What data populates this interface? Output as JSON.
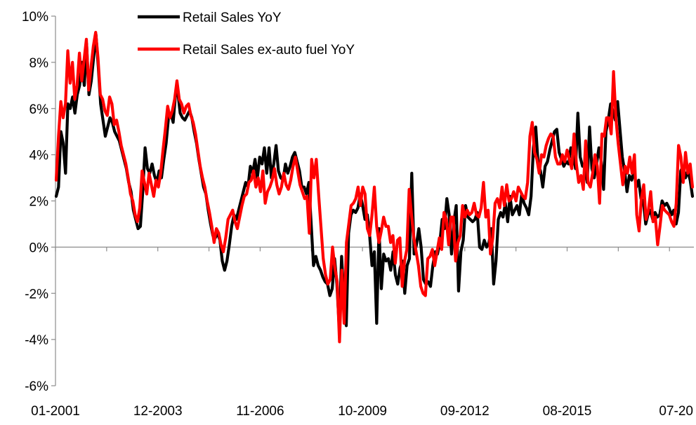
{
  "chart_data": {
    "type": "line",
    "title": "",
    "xlabel": "",
    "ylabel": "",
    "ylim": [
      -6,
      10
    ],
    "y_ticks": [
      -6,
      -4,
      -2,
      0,
      2,
      4,
      6,
      8,
      10
    ],
    "y_tick_labels": [
      "-6%",
      "-4%",
      "-2%",
      "0%",
      "2%",
      "4%",
      "6%",
      "8%",
      "10%"
    ],
    "x_tick_labels": [
      "01-2001",
      "12-2003",
      "11-2006",
      "10-2009",
      "09-2012",
      "08-2015",
      "07-20"
    ],
    "grid": false,
    "legend_position": "top-center",
    "series": [
      {
        "name": "Retail Sales YoY",
        "color": "#000000",
        "values": [
          2.2,
          2.6,
          5,
          4.5,
          3.2,
          6.2,
          6,
          6.5,
          5.8,
          6.6,
          7,
          8,
          7,
          8.8,
          6.6,
          7.2,
          8.2,
          9.2,
          7.8,
          6.2,
          5.5,
          4.8,
          5.2,
          5.6,
          5.4,
          5,
          4.8,
          4.6,
          4.2,
          3.8,
          3.4,
          2.8,
          2.4,
          1.6,
          1.2,
          0.8,
          0.9,
          2.4,
          4.3,
          3.4,
          3.2,
          3.6,
          3.1,
          2.8,
          3.3,
          3,
          3.8,
          4.5,
          5.6,
          5.8,
          5.4,
          6.6,
          6.7,
          5.8,
          5.6,
          5.5,
          5.7,
          5.9,
          5.6,
          5,
          4.5,
          3.8,
          3.2,
          2.6,
          2.3,
          1.6,
          1,
          0.5,
          0.4,
          0.6,
          0.3,
          -0.6,
          -1,
          -0.6,
          0.1,
          0.9,
          1.4,
          1.2,
          1.6,
          2,
          2.4,
          2.8,
          2.6,
          3.5,
          3.2,
          3.8,
          3,
          3.9,
          3.6,
          4.3,
          3.2,
          4.3,
          3,
          3.6,
          4.4,
          3.3,
          3,
          2.9,
          3.6,
          3.2,
          3.5,
          3.9,
          4.1,
          3.7,
          3.3,
          2.6,
          2.6,
          2.3,
          2.8,
          1,
          -0.8,
          -0.4,
          -0.8,
          -1,
          -1.3,
          -1.5,
          -1.6,
          -2.1,
          -1.8,
          -0.5,
          -1.6,
          -3.5,
          -0.4,
          -2.2,
          -3.4,
          0.6,
          1.4,
          1.6,
          1.5,
          1.7,
          2.3,
          1.8,
          1.2,
          1.4,
          0.5,
          -0.8,
          -0.2,
          -3.3,
          0.8,
          -1.8,
          -0.3,
          -0.6,
          -0.5,
          -1,
          -0.2,
          -1.2,
          -1.6,
          -0.9,
          -0.6,
          -2,
          -0.8,
          -0.5,
          3.2,
          -0.3,
          0.1,
          0.8,
          0,
          -1.4,
          -1.6,
          -1.5,
          -1.7,
          -0.8,
          -0.2,
          -0.3,
          0.2,
          1.2,
          0.8,
          2.1,
          1.4,
          -0.3,
          1.1,
          1.8,
          -1.9,
          -0.2,
          0.3,
          1.8,
          1.3,
          1.2,
          1.1,
          1.2,
          1.5,
          0,
          -0.1,
          0.3,
          0,
          0.2,
          0.8,
          -1.6,
          -0.6,
          1.2,
          1.5,
          1.3,
          1.9,
          1.1,
          2.2,
          1.4,
          1.6,
          1.8,
          1.4,
          2.3,
          1.9,
          1.7,
          1.4,
          2.2,
          4.3,
          5.2,
          3.6,
          3.3,
          2.6,
          3.5,
          3.7,
          4.2,
          4.6,
          5,
          5.1,
          4.1,
          3.8,
          3.5,
          3.7,
          3.6,
          4.3,
          4.1,
          3.4,
          5.8,
          3.9,
          3.5,
          3.6,
          2.8,
          5.2,
          3.4,
          3,
          3.6,
          4.3,
          3.7,
          2.5,
          5,
          5.5,
          6.2,
          5.9,
          5.5,
          6.3,
          5.1,
          3.9,
          3.3,
          2.4,
          3.1,
          2.9,
          3.3,
          2.6,
          2.9,
          2.1,
          2,
          1,
          1.4,
          1.6,
          1.2,
          1.5,
          1.3,
          1.4,
          2,
          1.8,
          1.9,
          1.7,
          1.4,
          1.6,
          1,
          1.5,
          3.3,
          3.5,
          3,
          3.3,
          2.9,
          2.2
        ]
      },
      {
        "name": "Retail Sales ex-auto fuel YoY",
        "color": "#ff0000",
        "values": [
          2.9,
          4.8,
          6.3,
          5.6,
          6.2,
          8.5,
          7.1,
          8,
          6.4,
          7,
          8.4,
          7.2,
          8.1,
          9,
          6.8,
          7.8,
          8.7,
          9.3,
          8.2,
          6.6,
          6.4,
          5.9,
          5.7,
          6.5,
          6.2,
          5.3,
          5.5,
          5,
          4.4,
          4,
          3.6,
          3,
          2.3,
          2,
          1.4,
          1.1,
          1.7,
          3.3,
          2.8,
          2.3,
          3.2,
          2.7,
          2.2,
          2.9,
          2.6,
          3.2,
          4.2,
          5.1,
          6.1,
          5.6,
          5.9,
          6.4,
          7.2,
          6.4,
          6.2,
          5.8,
          6.1,
          6.2,
          5.7,
          5.4,
          4.9,
          4.2,
          3.5,
          3,
          2.6,
          2,
          1.5,
          0.9,
          0.2,
          0.8,
          0.6,
          0.1,
          -0.2,
          0.4,
          1.2,
          1.4,
          1.6,
          1.1,
          0.8,
          1.3,
          1.8,
          2.2,
          2.3,
          2.8,
          2.9,
          3.3,
          2.6,
          3,
          2.4,
          3.3,
          1.9,
          2.4,
          2.6,
          2.9,
          3.4,
          2.7,
          2.3,
          2.6,
          3.2,
          2.7,
          2.5,
          2.9,
          3.5,
          3.9,
          3.3,
          2.7,
          2.4,
          2.1,
          2.2,
          0.6,
          3.8,
          3,
          3.8,
          2.3,
          0.9,
          -0.5,
          -1.2,
          -1.6,
          -1.4,
          0,
          -0.9,
          -1.5,
          -4.1,
          -1,
          -3.3,
          0.2,
          1,
          1.8,
          1.9,
          2.1,
          2.6,
          1.8,
          2.6,
          2.3,
          0.8,
          0.5,
          1.4,
          2.6,
          0.9,
          0.2,
          0.7,
          1.3,
          0.9,
          0.9,
          0.2,
          0.5,
          -0.7,
          0.3,
          0.4,
          -1.7,
          -0.6,
          -0.1,
          2.5,
          1.4,
          0.4,
          -0.2,
          -0.8,
          -1.7,
          -2,
          -2.1,
          -0.5,
          -0.4,
          -0.1,
          -0.8,
          -0.2,
          0.4,
          -0.1,
          1.5,
          1.2,
          0.1,
          1.3,
          1.3,
          -0.6,
          0.2,
          0.5,
          1.8,
          1.3,
          1.6,
          1.4,
          1.5,
          1.9,
          1.4,
          1.3,
          1.7,
          2.8,
          1.3,
          1.6,
          -0.3,
          0.4,
          1.9,
          2.1,
          1.7,
          2.6,
          1.8,
          2.7,
          2,
          2.1,
          2.4,
          2,
          2.6,
          2.4,
          2.2,
          2.1,
          2.8,
          4.8,
          5.4,
          4.1,
          3.8,
          3.2,
          4,
          3.9,
          4.4,
          4.7,
          4.9,
          4.8,
          3.9,
          3.6,
          3.6,
          4,
          3.7,
          4.2,
          3.8,
          3.4,
          4.9,
          3.6,
          2.8,
          3.1,
          2.5,
          4.6,
          2.8,
          2.6,
          3.2,
          4,
          3.5,
          1.9,
          4.9,
          4.8,
          5.6,
          5.6,
          4.9,
          7.6,
          5.6,
          4.5,
          3.6,
          2.7,
          3.5,
          3.2,
          3.9,
          3.2,
          4,
          1.4,
          0.7,
          2.1,
          2.7,
          1.2,
          1.6,
          2.4,
          1.1,
          1.3,
          0.1,
          0.9,
          1.8,
          1.6,
          1.5,
          1.4,
          1.1,
          0.9,
          1.9,
          4.4,
          3.9,
          2.8,
          4.1,
          3.2,
          3.6,
          2.6
        ]
      }
    ]
  }
}
